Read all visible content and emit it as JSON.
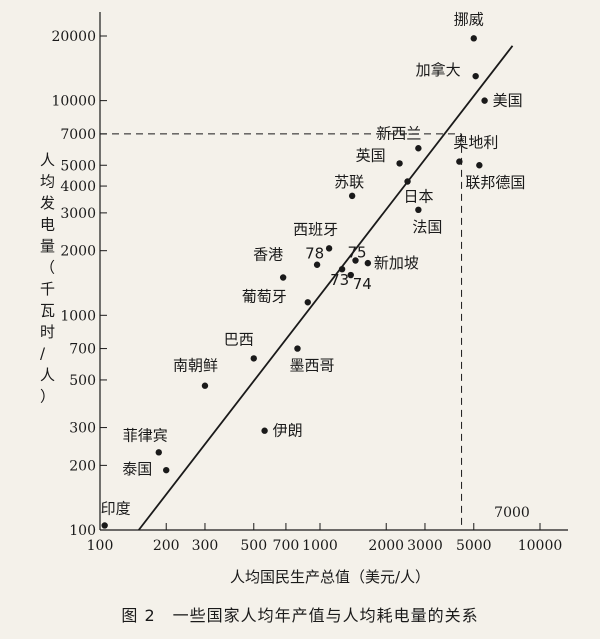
{
  "chart_data": {
    "type": "scatter",
    "xscale": "log",
    "yscale": "log",
    "xlabel": "人均国民生产总值（美元/人）",
    "ylabel": "人均发电量（千瓦时/人）",
    "caption": "图 2　一些国家人均年产值与人均耗电量的关系",
    "xlim": [
      100,
      10000
    ],
    "ylim": [
      100,
      20000
    ],
    "grid": false,
    "x_ticks": [
      100,
      200,
      300,
      500,
      700,
      1000,
      2000,
      3000,
      5000,
      10000
    ],
    "x_tick_labels": [
      "100",
      "200",
      "300",
      "500",
      "700",
      "1000",
      "2000",
      "3000",
      "5000",
      "10000"
    ],
    "y_ticks": [
      100,
      200,
      300,
      500,
      700,
      1000,
      2000,
      3000,
      4000,
      5000,
      7000,
      10000,
      20000
    ],
    "y_tick_labels": [
      "100",
      "200",
      "300",
      "500",
      "700",
      "1000",
      "2000",
      "3000",
      "4000",
      "5000",
      "7000",
      "10000",
      "20000"
    ],
    "points": [
      {
        "label": "挪威",
        "x": 5000,
        "y": 19500
      },
      {
        "label": "加拿大",
        "x": 5100,
        "y": 13000
      },
      {
        "label": "美国",
        "x": 5600,
        "y": 10000
      },
      {
        "label": "新西兰",
        "x": 2800,
        "y": 6000
      },
      {
        "label": "奥地利",
        "x": 4300,
        "y": 5200
      },
      {
        "label": "联邦德国",
        "x": 5300,
        "y": 5000
      },
      {
        "label": "英国",
        "x": 2300,
        "y": 5100
      },
      {
        "label": "日本",
        "x": 2500,
        "y": 4200
      },
      {
        "label": "苏联",
        "x": 1400,
        "y": 3600
      },
      {
        "label": "法国",
        "x": 2800,
        "y": 3100
      },
      {
        "label": "西班牙",
        "x": 1100,
        "y": 2050
      },
      {
        "label": "78",
        "x": 970,
        "y": 1720
      },
      {
        "label": "75",
        "x": 1450,
        "y": 1800
      },
      {
        "label": "73",
        "x": 1260,
        "y": 1640
      },
      {
        "label": "74",
        "x": 1380,
        "y": 1540
      },
      {
        "label": "新加坡",
        "x": 1650,
        "y": 1750
      },
      {
        "label": "香港",
        "x": 680,
        "y": 1500
      },
      {
        "label": "葡萄牙",
        "x": 880,
        "y": 1150
      },
      {
        "label": "巴西",
        "x": 500,
        "y": 630
      },
      {
        "label": "墨西哥",
        "x": 790,
        "y": 700
      },
      {
        "label": "南朝鲜",
        "x": 300,
        "y": 470
      },
      {
        "label": "伊朗",
        "x": 560,
        "y": 290
      },
      {
        "label": "菲律宾",
        "x": 185,
        "y": 230
      },
      {
        "label": "泰国",
        "x": 200,
        "y": 190
      },
      {
        "label": "印度",
        "x": 105,
        "y": 105
      }
    ],
    "regression_line": [
      {
        "x": 150,
        "y": 100
      },
      {
        "x": 7500,
        "y": 18000
      }
    ],
    "reference": {
      "x": 4400,
      "y": 7000,
      "label": "7000"
    }
  }
}
